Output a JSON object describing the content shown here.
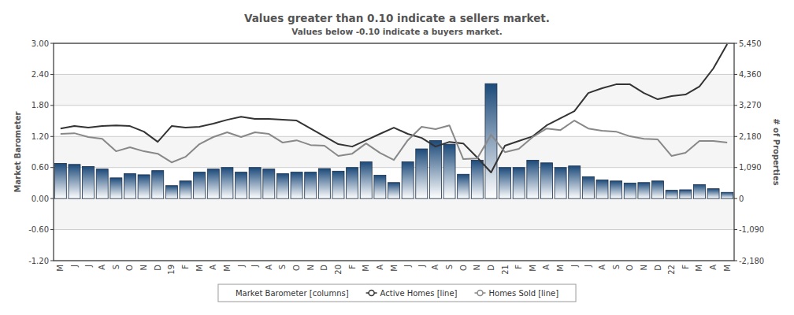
{
  "chart_data": {
    "type": "bar",
    "title": "Values greater than 0.10 indicate a sellers market.",
    "subtitle": "Values below -0.10 indicate a buyers market.",
    "y_label": "Market Barometer",
    "y2_label": "# of Properties",
    "categories": [
      "M",
      "J",
      "J",
      "A",
      "S",
      "O",
      "N",
      "D",
      "19",
      "F",
      "M",
      "A",
      "M",
      "J",
      "J",
      "A",
      "S",
      "O",
      "N",
      "D",
      "20",
      "F",
      "M",
      "A",
      "M",
      "J",
      "J",
      "A",
      "S",
      "O",
      "N",
      "D",
      "21",
      "F",
      "M",
      "A",
      "M",
      "J",
      "J",
      "A",
      "S",
      "O",
      "N",
      "D",
      "22",
      "F",
      "M",
      "A",
      "M"
    ],
    "series": [
      {
        "name": "Market Barometer [columns]",
        "type": "bar",
        "color": "#1c4a7a",
        "values": [
          0.68,
          0.66,
          0.62,
          0.57,
          0.4,
          0.48,
          0.46,
          0.54,
          0.25,
          0.34,
          0.51,
          0.57,
          0.6,
          0.51,
          0.6,
          0.57,
          0.48,
          0.51,
          0.51,
          0.58,
          0.53,
          0.6,
          0.71,
          0.45,
          0.31,
          0.71,
          0.96,
          1.12,
          1.05,
          0.47,
          0.74,
          2.22,
          0.6,
          0.6,
          0.74,
          0.69,
          0.6,
          0.63,
          0.42,
          0.36,
          0.34,
          0.3,
          0.31,
          0.34,
          0.16,
          0.17,
          0.27,
          0.19,
          0.12
        ]
      },
      {
        "name": "Active Homes [line]",
        "type": "line",
        "axis": "y2",
        "color": "#333333",
        "values": [
          2460,
          2545,
          2490,
          2545,
          2570,
          2545,
          2350,
          1990,
          2545,
          2490,
          2520,
          2630,
          2765,
          2875,
          2795,
          2795,
          2765,
          2740,
          2460,
          2185,
          1910,
          1825,
          2045,
          2270,
          2490,
          2270,
          2130,
          1825,
          1990,
          1935,
          1440,
          915,
          1855,
          2020,
          2185,
          2570,
          2820,
          3070,
          3705,
          3875,
          4010,
          4010,
          3705,
          3485,
          3595,
          3650,
          3930,
          4565,
          5420
        ]
      },
      {
        "name": "Homes Sold [line]",
        "type": "line",
        "axis": "y2",
        "color": "#888888",
        "values": [
          2270,
          2295,
          2160,
          2100,
          1660,
          1800,
          1660,
          1575,
          1270,
          1465,
          1910,
          2160,
          2325,
          2160,
          2325,
          2270,
          1965,
          2045,
          1880,
          1855,
          1495,
          1575,
          1935,
          1605,
          1355,
          2045,
          2520,
          2435,
          2570,
          1385,
          1410,
          2240,
          1630,
          1745,
          2160,
          2460,
          2405,
          2740,
          2460,
          2380,
          2350,
          2185,
          2100,
          2075,
          1495,
          1605,
          2020,
          2020,
          1965
        ]
      }
    ],
    "ylim": [
      -1.2,
      3
    ],
    "yticks": [
      {
        "value": -1.2,
        "label": "-1.20"
      },
      {
        "value": -0.6,
        "label": "-0.60"
      },
      {
        "value": 0,
        "label": "0.00"
      },
      {
        "value": 0.6,
        "label": "0.60"
      },
      {
        "value": 1.2,
        "label": "1.20"
      },
      {
        "value": 1.8,
        "label": "1.80"
      },
      {
        "value": 2.4,
        "label": "2.40"
      },
      {
        "value": 3,
        "label": "3.00"
      }
    ],
    "y2lim": [
      -2180,
      5450
    ],
    "y2ticks": [
      {
        "value": -2180,
        "label": "-2,180"
      },
      {
        "value": -1090,
        "label": "-1,090"
      },
      0,
      {
        "value": 1090,
        "label": "1,090"
      },
      {
        "value": 2180,
        "label": "2,180"
      },
      {
        "value": 3270,
        "label": "3,270"
      },
      {
        "value": 4360,
        "label": "4,360"
      },
      {
        "value": 5450,
        "label": "5,450"
      }
    ],
    "grid": true,
    "legend": "bottom"
  }
}
